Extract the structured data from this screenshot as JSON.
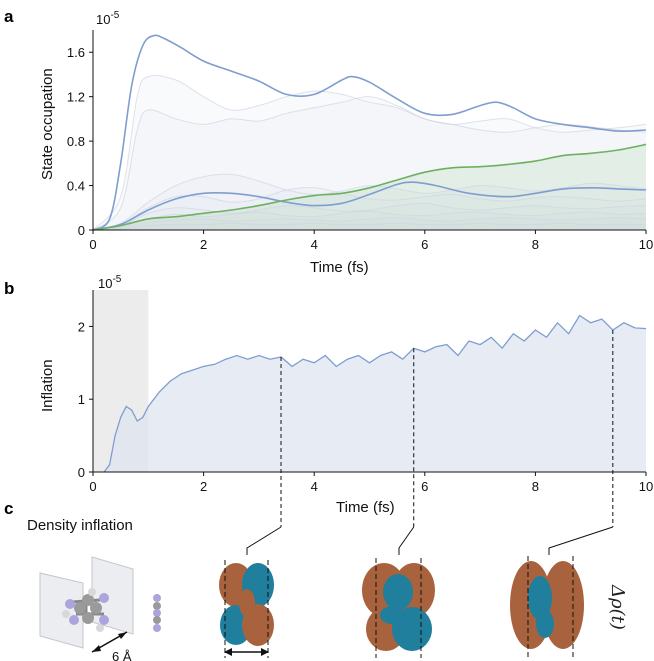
{
  "panel_a": {
    "letter": "a",
    "exponent": "10",
    "exponent_power": "-5"
  },
  "panel_b": {
    "letter": "b",
    "exponent": "10",
    "exponent_power": "-5"
  },
  "panel_c": {
    "letter": "c",
    "title": "Density inflation",
    "scale_label": "6 Å",
    "rho_label": "Δρ(t)"
  },
  "colors": {
    "primary": "#7f9ed0",
    "highlight": "#6db160",
    "faint": "#cfd6e2",
    "area": "#dfe6f0",
    "shade": "#ececec",
    "lobe_brown": "#a8633e",
    "lobe_teal": "#1f7f9c"
  },
  "chart_data": [
    {
      "type": "line",
      "panel": "a",
      "xlabel": "Time (fs)",
      "ylabel": "State occupation",
      "xlim": [
        0,
        10
      ],
      "ylim": [
        0,
        1.8
      ],
      "xticks": [
        0,
        2,
        4,
        6,
        8,
        10
      ],
      "yticks": [
        0,
        0.4,
        0.8,
        1.2,
        1.6
      ],
      "series": [
        {
          "role": "main",
          "x": [
            0,
            0.3,
            0.5,
            0.7,
            0.9,
            1.1,
            1.3,
            1.6,
            2,
            2.5,
            3,
            3.5,
            4,
            4.5,
            4.7,
            5,
            5.5,
            6,
            6.5,
            7,
            7.3,
            7.6,
            8,
            8.5,
            9,
            9.5,
            10
          ],
          "values": [
            0,
            0.1,
            0.6,
            1.3,
            1.66,
            1.75,
            1.72,
            1.64,
            1.52,
            1.43,
            1.34,
            1.22,
            1.22,
            1.35,
            1.38,
            1.33,
            1.18,
            1.05,
            1.04,
            1.12,
            1.15,
            1.1,
            1.0,
            0.95,
            0.92,
            0.89,
            0.9
          ]
        },
        {
          "role": "main",
          "x": [
            0,
            0.5,
            1,
            1.5,
            2,
            2.5,
            3,
            3.5,
            4,
            4.5,
            5,
            5.5,
            5.8,
            6.2,
            6.8,
            7.5,
            8,
            8.5,
            9,
            9.5,
            10
          ],
          "values": [
            0,
            0.05,
            0.18,
            0.28,
            0.33,
            0.33,
            0.3,
            0.25,
            0.22,
            0.24,
            0.32,
            0.41,
            0.43,
            0.4,
            0.33,
            0.3,
            0.33,
            0.37,
            0.38,
            0.37,
            0.36
          ]
        },
        {
          "role": "highlight",
          "x": [
            0,
            0.5,
            1,
            1.5,
            2,
            2.5,
            3,
            3.5,
            4,
            4.5,
            5,
            5.5,
            6,
            6.5,
            7,
            7.5,
            8,
            8.5,
            9,
            9.5,
            10
          ],
          "values": [
            0,
            0.04,
            0.1,
            0.12,
            0.15,
            0.18,
            0.22,
            0.27,
            0.31,
            0.33,
            0.38,
            0.45,
            0.52,
            0.56,
            0.57,
            0.59,
            0.62,
            0.67,
            0.69,
            0.72,
            0.77
          ]
        },
        {
          "role": "faint",
          "x": [
            0,
            0.5,
            0.8,
            1,
            1.5,
            2,
            2.5,
            3,
            3.5,
            4,
            4.5,
            5,
            5.5,
            6,
            6.5,
            7,
            7.5,
            8,
            8.5,
            9,
            9.5,
            10
          ],
          "values": [
            0,
            0.3,
            1.2,
            1.38,
            1.35,
            1.2,
            1.08,
            1.12,
            1.2,
            1.25,
            1.22,
            1.15,
            1.1,
            1.0,
            0.95,
            0.98,
            1.0,
            0.92,
            0.88,
            0.9,
            0.92,
            0.95
          ]
        },
        {
          "role": "faint",
          "x": [
            0,
            0.5,
            0.8,
            1,
            1.5,
            2,
            2.5,
            3,
            3.5,
            4,
            4.5,
            5,
            5.5,
            6,
            6.5,
            7,
            7.5,
            8,
            8.5,
            9,
            9.5,
            10
          ],
          "values": [
            0,
            0.2,
            0.9,
            1.08,
            1.0,
            0.95,
            1.0,
            0.98,
            1.05,
            1.1,
            1.15,
            1.2,
            1.12,
            1.0,
            0.95,
            0.9,
            0.88,
            0.92,
            0.95,
            0.93,
            0.9,
            0.88
          ]
        },
        {
          "role": "faint",
          "x": [
            0,
            0.5,
            1,
            1.5,
            2,
            2.5,
            3,
            3.5,
            4,
            4.5,
            5,
            5.5,
            6,
            6.5,
            7,
            7.5,
            8,
            8.5,
            9,
            9.5,
            10
          ],
          "values": [
            0,
            0.06,
            0.25,
            0.4,
            0.48,
            0.5,
            0.44,
            0.36,
            0.32,
            0.35,
            0.4,
            0.37,
            0.33,
            0.36,
            0.4,
            0.38,
            0.35,
            0.38,
            0.42,
            0.4,
            0.37
          ]
        },
        {
          "role": "faint",
          "x": [
            0,
            0.5,
            1,
            1.5,
            2,
            2.5,
            3,
            3.5,
            4,
            4.5,
            5,
            5.5,
            6,
            6.5,
            7,
            7.5,
            8,
            8.5,
            9,
            9.5,
            10
          ],
          "values": [
            0,
            0.05,
            0.2,
            0.3,
            0.3,
            0.25,
            0.28,
            0.36,
            0.38,
            0.33,
            0.28,
            0.27,
            0.3,
            0.32,
            0.28,
            0.26,
            0.29,
            0.3,
            0.28,
            0.26,
            0.28
          ]
        },
        {
          "role": "faint",
          "x": [
            0,
            0.5,
            1,
            1.5,
            2,
            2.5,
            3,
            3.5,
            4,
            4.5,
            5,
            5.5,
            6,
            6.5,
            7,
            7.5,
            8,
            8.5,
            9,
            9.5,
            10
          ],
          "values": [
            0,
            0.04,
            0.15,
            0.2,
            0.18,
            0.15,
            0.18,
            0.22,
            0.2,
            0.17,
            0.18,
            0.22,
            0.24,
            0.2,
            0.18,
            0.2,
            0.22,
            0.2,
            0.19,
            0.21,
            0.22
          ]
        },
        {
          "role": "faint",
          "x": [
            0,
            0.5,
            1,
            1.5,
            2,
            2.5,
            3,
            3.5,
            4,
            4.5,
            5,
            5.5,
            6,
            6.5,
            7,
            7.5,
            8,
            8.5,
            9,
            9.5,
            10
          ],
          "values": [
            0,
            0.03,
            0.1,
            0.14,
            0.12,
            0.14,
            0.16,
            0.13,
            0.12,
            0.15,
            0.17,
            0.14,
            0.13,
            0.15,
            0.16,
            0.14,
            0.13,
            0.15,
            0.16,
            0.14,
            0.15
          ]
        },
        {
          "role": "faint",
          "x": [
            0,
            0.5,
            1,
            1.5,
            2,
            2.5,
            3,
            3.5,
            4,
            4.5,
            5,
            5.5,
            6,
            6.5,
            7,
            7.5,
            8,
            8.5,
            9,
            9.5,
            10
          ],
          "values": [
            0,
            0.02,
            0.07,
            0.09,
            0.1,
            0.08,
            0.09,
            0.1,
            0.09,
            0.08,
            0.1,
            0.11,
            0.09,
            0.08,
            0.1,
            0.11,
            0.1,
            0.09,
            0.1,
            0.11,
            0.1
          ]
        },
        {
          "role": "faint",
          "x": [
            0,
            0.5,
            1,
            1.5,
            2,
            2.5,
            3,
            3.5,
            4,
            4.5,
            5,
            5.5,
            6,
            6.5,
            7,
            7.5,
            8,
            8.5,
            9,
            9.5,
            10
          ],
          "values": [
            0,
            0.01,
            0.04,
            0.05,
            0.05,
            0.06,
            0.05,
            0.05,
            0.06,
            0.05,
            0.05,
            0.06,
            0.05,
            0.05,
            0.06,
            0.05,
            0.05,
            0.06,
            0.05,
            0.05,
            0.05
          ]
        }
      ]
    },
    {
      "type": "area",
      "panel": "b",
      "xlabel": "Time (fs)",
      "ylabel": "Inflation",
      "xlim": [
        0,
        10
      ],
      "ylim": [
        0,
        2.5
      ],
      "xticks": [
        0,
        2,
        4,
        6,
        8,
        10
      ],
      "yticks": [
        0,
        1,
        2
      ],
      "shaded_x_range": [
        0,
        1
      ],
      "marked_times": [
        3.4,
        5.8,
        9.4
      ],
      "x": [
        0.2,
        0.3,
        0.4,
        0.5,
        0.6,
        0.7,
        0.8,
        0.9,
        1.0,
        1.1,
        1.2,
        1.4,
        1.6,
        1.8,
        2.0,
        2.2,
        2.4,
        2.6,
        2.8,
        3.0,
        3.2,
        3.4,
        3.6,
        3.8,
        4.0,
        4.2,
        4.4,
        4.6,
        4.8,
        5.0,
        5.2,
        5.4,
        5.6,
        5.8,
        6.0,
        6.2,
        6.4,
        6.6,
        6.8,
        7.0,
        7.2,
        7.4,
        7.6,
        7.8,
        8.0,
        8.2,
        8.4,
        8.6,
        8.8,
        9.0,
        9.2,
        9.4,
        9.6,
        9.8,
        10.0
      ],
      "values": [
        0.0,
        0.1,
        0.5,
        0.75,
        0.9,
        0.85,
        0.7,
        0.75,
        0.9,
        1.0,
        1.1,
        1.25,
        1.35,
        1.4,
        1.45,
        1.48,
        1.55,
        1.6,
        1.55,
        1.6,
        1.55,
        1.58,
        1.45,
        1.55,
        1.5,
        1.6,
        1.45,
        1.55,
        1.6,
        1.5,
        1.6,
        1.65,
        1.55,
        1.7,
        1.65,
        1.72,
        1.75,
        1.6,
        1.8,
        1.75,
        1.85,
        1.7,
        1.9,
        1.8,
        1.95,
        1.85,
        2.05,
        1.9,
        2.15,
        2.05,
        2.1,
        1.95,
        2.05,
        1.98,
        1.97
      ]
    }
  ]
}
